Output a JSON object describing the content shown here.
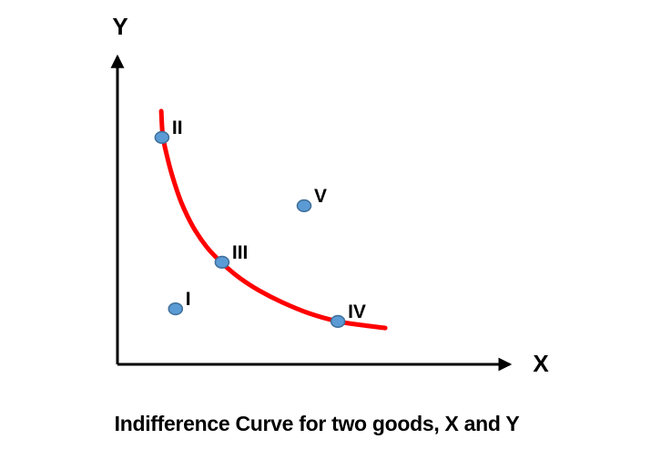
{
  "figure": {
    "caption": "Indifference Curve for two goods, X and Y"
  },
  "colors": {
    "curve_red": "#FF0000",
    "point_fill": "#5B9BD5",
    "point_border": "#41719C",
    "axis_black": "#000000"
  },
  "chart_data": {
    "type": "scatter",
    "title": "Indifference Curve for two goods, X and Y",
    "xlabel": "X",
    "ylabel": "Y",
    "axis_ticks": "none",
    "legend": "none",
    "coordinate_units": "percent of plot area measured from axes origin",
    "points": [
      {
        "label": "I",
        "x": 14.6,
        "y": 17.7,
        "on_curve": false
      },
      {
        "label": "II",
        "x": 11.2,
        "y": 72.4,
        "on_curve": true
      },
      {
        "label": "III",
        "x": 26.3,
        "y": 32.6,
        "on_curve": true
      },
      {
        "label": "IV",
        "x": 55.4,
        "y": 13.7,
        "on_curve": true
      },
      {
        "label": "V",
        "x": 46.9,
        "y": 50.6,
        "on_curve": false
      }
    ],
    "curve": {
      "label": "indifference-curve",
      "points": [
        [
          11.0,
          80.8
        ],
        [
          11.4,
          73.0
        ],
        [
          12.6,
          65.7
        ],
        [
          14.2,
          58.4
        ],
        [
          16.2,
          51.2
        ],
        [
          19.0,
          43.9
        ],
        [
          22.4,
          37.5
        ],
        [
          26.3,
          32.3
        ],
        [
          30.7,
          27.6
        ],
        [
          35.7,
          23.5
        ],
        [
          41.4,
          19.8
        ],
        [
          48.1,
          16.3
        ],
        [
          55.4,
          13.7
        ],
        [
          61.6,
          12.5
        ],
        [
          67.3,
          11.6
        ]
      ]
    }
  }
}
